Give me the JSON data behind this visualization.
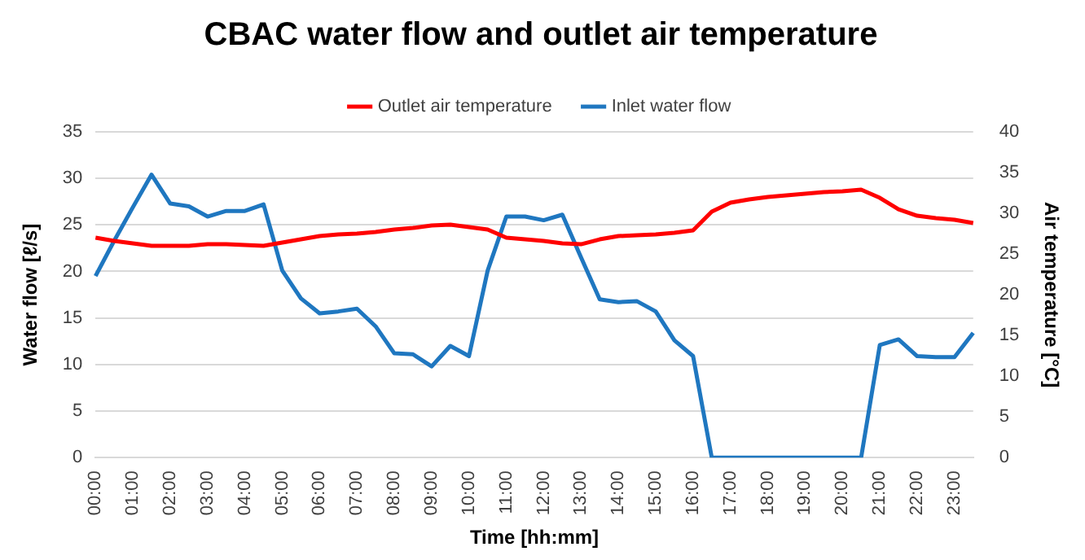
{
  "chart_data": {
    "type": "line",
    "title": "CBAC water flow and outlet air temperature",
    "xlabel": "Time [hh:mm]",
    "ylabel": "Water flow [ℓ/s]",
    "y2label": "Air temperature [°C]",
    "categories": [
      "00:00",
      null,
      "01:00",
      null,
      "02:00",
      null,
      "03:00",
      null,
      "04:00",
      null,
      "05:00",
      null,
      "06:00",
      null,
      "07:00",
      null,
      "08:00",
      null,
      "09:00",
      null,
      "10:00",
      null,
      "11:00",
      null,
      "12:00",
      null,
      "13:00",
      null,
      "14:00",
      null,
      "15:00",
      null,
      "16:00",
      null,
      "17:00",
      null,
      "18:00",
      null,
      "19:00",
      null,
      "20:00",
      null,
      "21:00",
      null,
      "22:00",
      null,
      "23:00",
      null
    ],
    "series": [
      {
        "name": "Outlet air temperature",
        "color": "#ff0000",
        "axis": "y2",
        "values": [
          27.0,
          26.6,
          26.3,
          26.0,
          26.0,
          26.0,
          26.2,
          26.2,
          26.1,
          26.0,
          26.4,
          26.8,
          27.2,
          27.4,
          27.5,
          27.7,
          28.0,
          28.2,
          28.5,
          28.6,
          28.3,
          28.0,
          27.0,
          26.8,
          26.6,
          26.3,
          26.2,
          26.8,
          27.2,
          27.3,
          27.4,
          27.6,
          27.9,
          30.2,
          31.3,
          31.7,
          32.0,
          32.2,
          32.4,
          32.6,
          32.7,
          32.9,
          31.9,
          30.5,
          29.7,
          29.4,
          29.2,
          28.8
        ]
      },
      {
        "name": "Inlet water flow",
        "color": "#1f77c0",
        "values": [
          19.5,
          23.3,
          26.9,
          30.4,
          27.3,
          27.0,
          25.9,
          26.5,
          26.5,
          27.2,
          20.1,
          17.1,
          15.5,
          15.7,
          16.0,
          14.1,
          11.2,
          11.1,
          9.8,
          12.0,
          10.9,
          20.1,
          25.9,
          25.9,
          25.5,
          26.1,
          21.5,
          17.0,
          16.7,
          16.8,
          15.7,
          12.6,
          10.9,
          0,
          0,
          0,
          0,
          0,
          0,
          0,
          0,
          0,
          12.1,
          12.7,
          10.9,
          10.8,
          10.8,
          13.4
        ]
      }
    ],
    "ylim": [
      0,
      35
    ],
    "yticks": [
      0,
      5,
      10,
      15,
      20,
      25,
      30,
      35
    ],
    "y2lim": [
      0,
      40
    ],
    "y2ticks": [
      0,
      5,
      10,
      15,
      20,
      25,
      30,
      35,
      40
    ],
    "grid": "y",
    "legend": "top",
    "marker": "none",
    "line_style": "solid"
  }
}
